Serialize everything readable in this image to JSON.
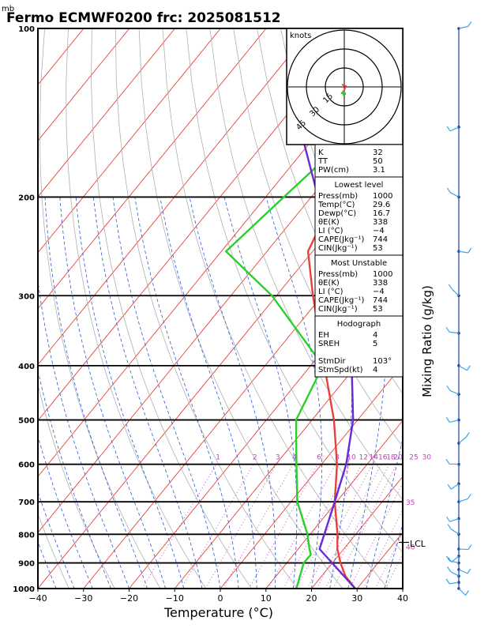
{
  "chart_data": {
    "type": "line",
    "title": "Fermo ECMWF0200  frc: 2025081512",
    "units_label": "mb",
    "xlabel": "Temperature (°C)",
    "right_label": "Mixing Ratio (g/kg)",
    "x_ticks": [
      -40,
      -30,
      -20,
      -10,
      0,
      10,
      20,
      30,
      40
    ],
    "xlim": [
      -40,
      40
    ],
    "pressure_ticks": [
      100,
      200,
      300,
      400,
      500,
      600,
      700,
      800,
      900,
      1000
    ],
    "ylim": [
      1000,
      100
    ],
    "y_scale": "log",
    "series": [
      {
        "color": "#e8403a",
        "points": [
          [
            1000,
            29.6
          ],
          [
            950,
            25.2
          ],
          [
            900,
            21.8
          ],
          [
            850,
            18.6
          ],
          [
            800,
            16.0
          ],
          [
            700,
            9.6
          ],
          [
            600,
            3.4
          ],
          [
            500,
            -5.2
          ],
          [
            400,
            -17.0
          ],
          [
            300,
            -32.0
          ],
          [
            250,
            -41.0
          ],
          [
            200,
            -45.0
          ],
          [
            150,
            -48.0
          ],
          [
            100,
            -51.0
          ]
        ]
      },
      {
        "color": "#2ad02a",
        "points": [
          [
            1000,
            16.7
          ],
          [
            900,
            13.7
          ],
          [
            870,
            13.8
          ],
          [
            850,
            12.5
          ],
          [
            800,
            9.4
          ],
          [
            700,
            1.4
          ],
          [
            600,
            -5.5
          ],
          [
            500,
            -13.5
          ],
          [
            400,
            -17.3
          ],
          [
            300,
            -41.0
          ],
          [
            250,
            -59.0
          ],
          [
            200,
            -56.0
          ],
          [
            150,
            -52.0
          ],
          [
            100,
            -46.0
          ]
        ]
      },
      {
        "color": "#6a2ad6",
        "points": [
          [
            1000,
            29.6
          ],
          [
            850,
            14.7
          ],
          [
            700,
            9.6
          ],
          [
            600,
            5.4
          ],
          [
            500,
            -1.0
          ],
          [
            400,
            -11.0
          ],
          [
            300,
            -27.0
          ],
          [
            250,
            -37.0
          ],
          [
            200,
            -48.5
          ],
          [
            150,
            -65.0
          ],
          [
            115,
            -78.0
          ]
        ]
      }
    ],
    "mixing_ratio_labels": [
      "1",
      "2",
      "3",
      "4",
      "6",
      "8",
      "10",
      "12",
      "14",
      "16",
      "18",
      "20",
      "25",
      "30"
    ],
    "right_annotations": [
      {
        "label": "35",
        "p": 700
      },
      {
        "label": "40",
        "p": 840
      }
    ],
    "lcl_label": "LCL",
    "lcl_pressure": 827,
    "hodograph": {
      "units": "knots",
      "ring_labels": [
        "15",
        "30",
        "45"
      ]
    },
    "indices": [
      {
        "label": "K",
        "value": "32"
      },
      {
        "label": "TT",
        "value": "50"
      },
      {
        "label": "PW(cm)",
        "value": "3.1"
      }
    ],
    "lowest_level": {
      "title": "Lowest level",
      "rows": [
        {
          "label": "Press(mb)",
          "value": "1000"
        },
        {
          "label": "Temp(°C)",
          "value": "29.6"
        },
        {
          "label": "Dewp(°C)",
          "value": "16.7"
        },
        {
          "label": "θE(K)",
          "value": "338"
        },
        {
          "label": "LI (°C)",
          "value": "−4"
        },
        {
          "label": "CAPE(Jkg⁻¹)",
          "value": "744"
        },
        {
          "label": "CIN(Jkg⁻¹)",
          "value": "53"
        }
      ]
    },
    "most_unstable": {
      "title": "Most Unstable",
      "rows": [
        {
          "label": "Press(mb)",
          "value": "1000"
        },
        {
          "label": "θE(K)",
          "value": "338"
        },
        {
          "label": "LI (°C)",
          "value": "−4"
        },
        {
          "label": "CAPE(Jkg⁻¹)",
          "value": "744"
        },
        {
          "label": "CIN(Jkg⁻¹)",
          "value": "53"
        }
      ]
    },
    "hodograph_table": {
      "title": "Hodograph",
      "rows": [
        {
          "label": "EH",
          "value": "4"
        },
        {
          "label": "SREH",
          "value": "5"
        },
        {
          "label": "",
          "value": ""
        },
        {
          "label": "StmDir",
          "value": "103°"
        },
        {
          "label": "StmSpd(kt)",
          "value": "4"
        }
      ]
    },
    "colors": {
      "temperature": "#e8403a",
      "dewpoint": "#2ad02a",
      "parcel": "#6a2ad6",
      "isotherm": "#e8403a",
      "dry_adiabat": "#b0b0b0",
      "moist_adiabat": "#2a5ad6",
      "mixing_ratio": "#c040c0",
      "wind": "#3aa6e8"
    }
  }
}
